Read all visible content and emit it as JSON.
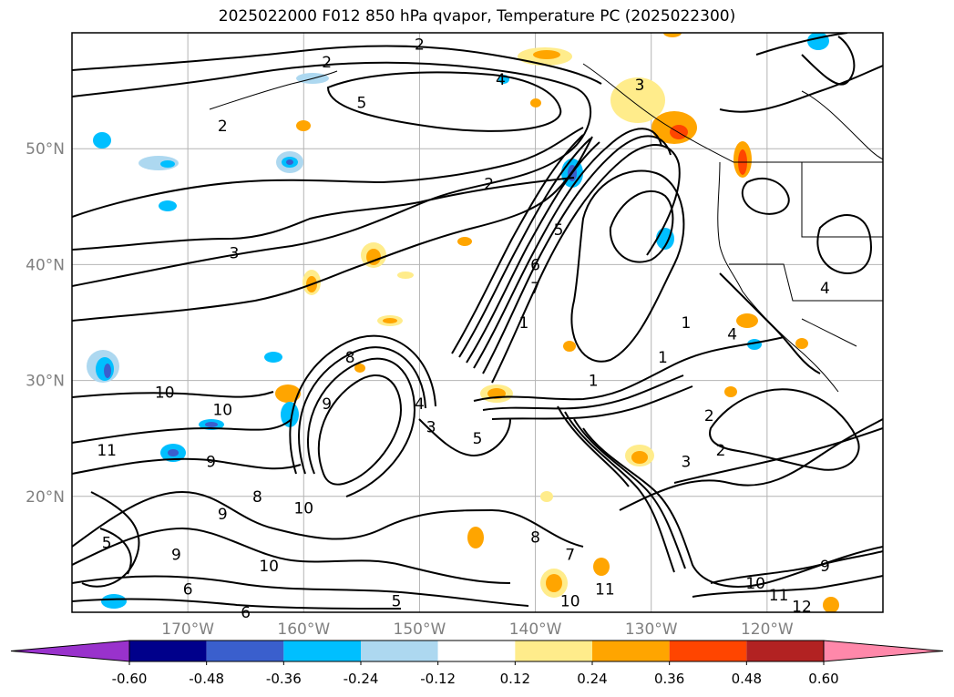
{
  "title": "2025022000 F012 850 hPa qvapor, Temperature PC (2025022300)",
  "lat_ticks": [
    {
      "label": "50°N",
      "lat": 50
    },
    {
      "label": "40°N",
      "lat": 40
    },
    {
      "label": "30°N",
      "lat": 30
    },
    {
      "label": "20°N",
      "lat": 20
    }
  ],
  "lon_ticks": [
    {
      "label": "170°W",
      "lon": -170
    },
    {
      "label": "160°W",
      "lon": -160
    },
    {
      "label": "150°W",
      "lon": -150
    },
    {
      "label": "140°W",
      "lon": -140
    },
    {
      "label": "130°W",
      "lon": -130
    },
    {
      "label": "120°W",
      "lon": -120
    }
  ],
  "colorbar": {
    "ticks": [
      "-0.60",
      "-0.48",
      "-0.36",
      "-0.24",
      "-0.12",
      "0.12",
      "0.24",
      "0.36",
      "0.48",
      "0.60"
    ],
    "colors": [
      "#9932cc",
      "#00008b",
      "#3a5fcd",
      "#00bfff",
      "#add8f0",
      "#ffffff",
      "#ffec8b",
      "#ffa500",
      "#ff4500",
      "#b22222",
      "#ff88aa"
    ]
  },
  "contour_labels": [
    {
      "text": "2",
      "lon": -167,
      "lat": 52
    },
    {
      "text": "2",
      "lon": -158,
      "lat": 57.5
    },
    {
      "text": "2",
      "lon": -150,
      "lat": 59
    },
    {
      "text": "4",
      "lon": -143,
      "lat": 56
    },
    {
      "text": "5",
      "lon": -155,
      "lat": 54
    },
    {
      "text": "3",
      "lon": -131,
      "lat": 55.5
    },
    {
      "text": "2",
      "lon": -144,
      "lat": 47
    },
    {
      "text": "3",
      "lon": -166,
      "lat": 41
    },
    {
      "text": "5",
      "lon": -138,
      "lat": 43
    },
    {
      "text": "6",
      "lon": -140,
      "lat": 40
    },
    {
      "text": "7",
      "lon": -140,
      "lat": 38
    },
    {
      "text": "1",
      "lon": -141,
      "lat": 35
    },
    {
      "text": "1",
      "lon": -129,
      "lat": 32
    },
    {
      "text": "1",
      "lon": -135,
      "lat": 30
    },
    {
      "text": "8",
      "lon": -156,
      "lat": 32
    },
    {
      "text": "9",
      "lon": -158,
      "lat": 28
    },
    {
      "text": "4",
      "lon": -150,
      "lat": 28
    },
    {
      "text": "3",
      "lon": -149,
      "lat": 26
    },
    {
      "text": "5",
      "lon": -145,
      "lat": 25
    },
    {
      "text": "10",
      "lon": -172,
      "lat": 29
    },
    {
      "text": "10",
      "lon": -167,
      "lat": 27.5
    },
    {
      "text": "11",
      "lon": -177,
      "lat": 24
    },
    {
      "text": "9",
      "lon": -168,
      "lat": 23
    },
    {
      "text": "8",
      "lon": -164,
      "lat": 20
    },
    {
      "text": "9",
      "lon": -167,
      "lat": 18.5
    },
    {
      "text": "10",
      "lon": -160,
      "lat": 19
    },
    {
      "text": "9",
      "lon": -171,
      "lat": 15
    },
    {
      "text": "10",
      "lon": -163,
      "lat": 14
    },
    {
      "text": "8",
      "lon": -140,
      "lat": 16.5
    },
    {
      "text": "7",
      "lon": -137,
      "lat": 15
    },
    {
      "text": "10",
      "lon": -137,
      "lat": 11
    },
    {
      "text": "11",
      "lon": -134,
      "lat": 12
    },
    {
      "text": "2",
      "lon": -125,
      "lat": 27
    },
    {
      "text": "2",
      "lon": -124,
      "lat": 24
    },
    {
      "text": "3",
      "lon": -127,
      "lat": 23
    },
    {
      "text": "10",
      "lon": -121,
      "lat": 12.5
    },
    {
      "text": "11",
      "lon": -119,
      "lat": 11.5
    },
    {
      "text": "12",
      "lon": -117,
      "lat": 10.5
    },
    {
      "text": "9",
      "lon": -115,
      "lat": 14
    },
    {
      "text": "4",
      "lon": -115,
      "lat": 38
    },
    {
      "text": "4",
      "lon": -123,
      "lat": 34
    },
    {
      "text": "1",
      "lon": -127,
      "lat": 35
    },
    {
      "text": "6",
      "lon": -170,
      "lat": 12
    },
    {
      "text": "5",
      "lon": -177,
      "lat": 16
    },
    {
      "text": "6",
      "lon": -165,
      "lat": 10
    },
    {
      "text": "5",
      "lon": -152,
      "lat": 11
    }
  ],
  "icon": "map-contour-plot"
}
